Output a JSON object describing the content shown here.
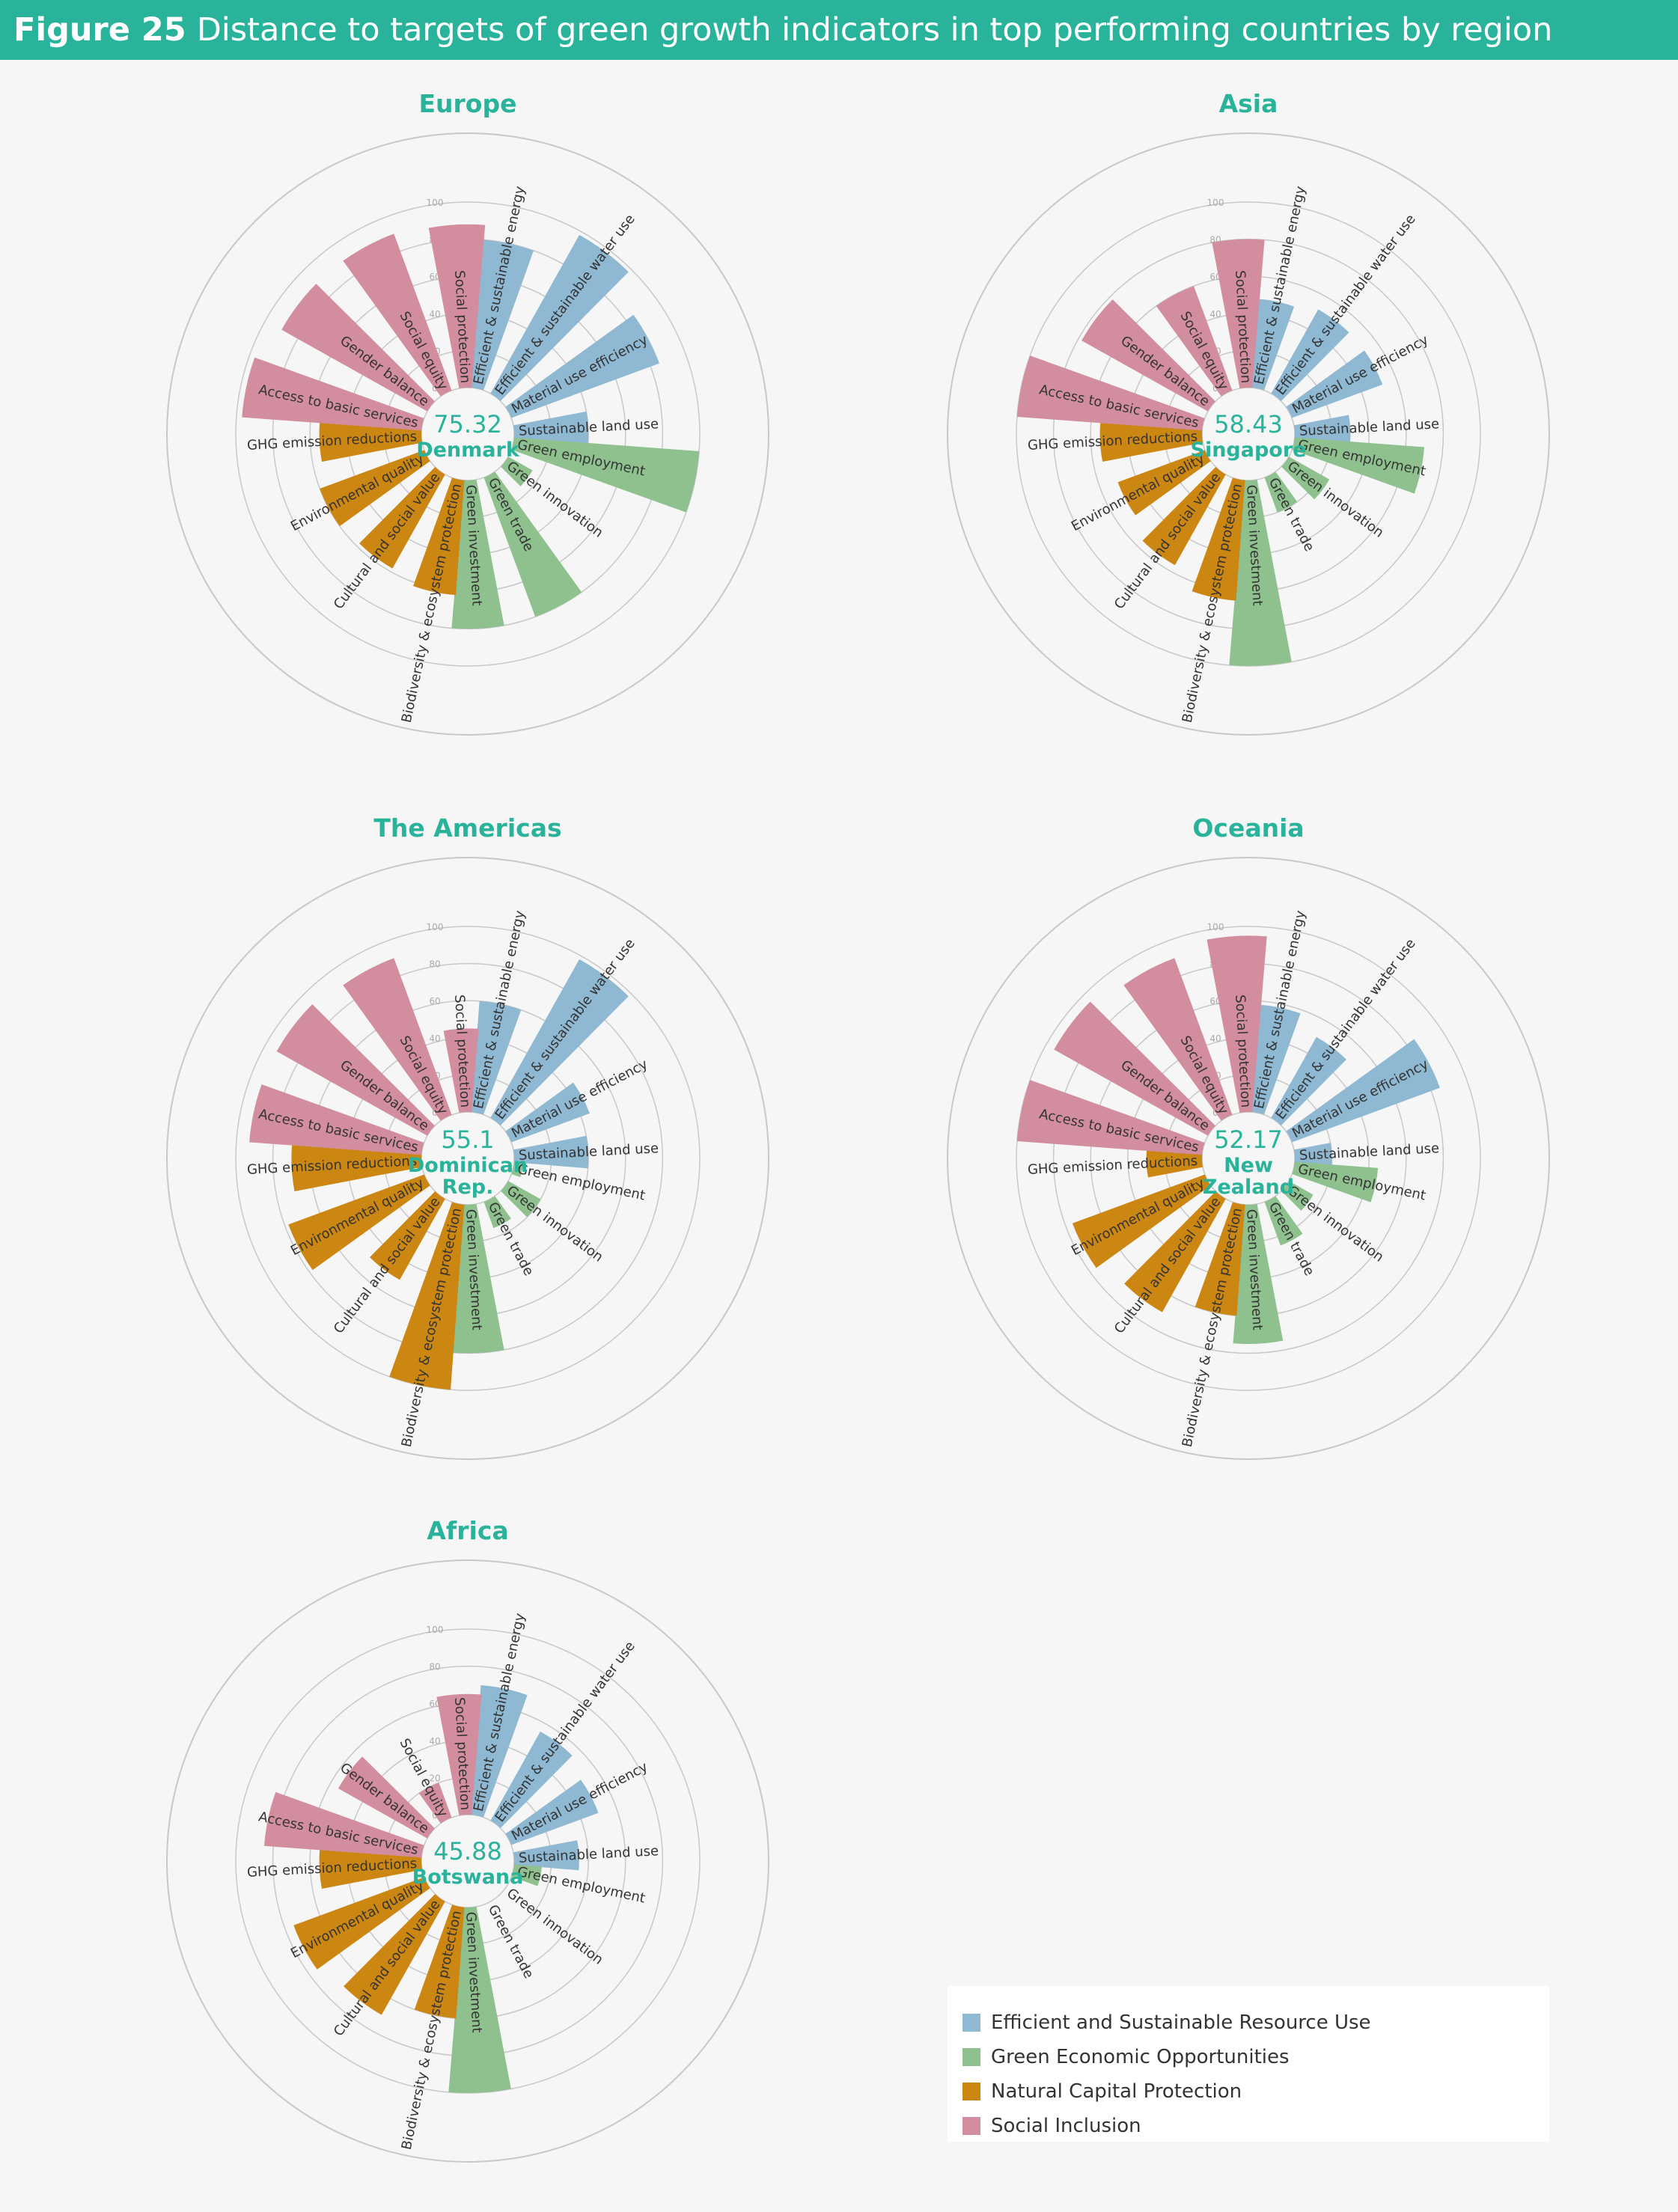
{
  "figure": {
    "number": "Figure 25",
    "title": "Distance to targets of green growth indicators in top performing countries by region"
  },
  "colors": {
    "header": "#2ab39b",
    "accent_text": "#2ab39b",
    "Efficient and Sustainable Resource Use": "#8fb8d2",
    "Green Economic Opportunities": "#8fc18f",
    "Natural Capital Protection": "#cc8612",
    "Social Inclusion": "#d28e9e"
  },
  "legend": {
    "items": [
      "Efficient and Sustainable Resource Use",
      "Green Economic Opportunities",
      "Natural Capital Protection",
      "Social Inclusion"
    ]
  },
  "chart_data": {
    "type": "radial-bar",
    "radial_axis": {
      "range": [
        0,
        100
      ],
      "ticks": [
        0,
        20,
        40,
        60,
        80,
        100
      ]
    },
    "indicators": [
      {
        "label": "Efficient & sustainable energy",
        "group": "Efficient and Sustainable Resource Use"
      },
      {
        "label": "Efficient & sustainable water use",
        "group": "Efficient and Sustainable Resource Use"
      },
      {
        "label": "Material use efficiency",
        "group": "Efficient and Sustainable Resource Use"
      },
      {
        "label": "Sustainable land use",
        "group": "Efficient and Sustainable Resource Use"
      },
      {
        "label": "Green employment",
        "group": "Green Economic Opportunities"
      },
      {
        "label": "Green innovation",
        "group": "Green Economic Opportunities"
      },
      {
        "label": "Green trade",
        "group": "Green Economic Opportunities"
      },
      {
        "label": "Green investment",
        "group": "Green Economic Opportunities"
      },
      {
        "label": "Biodiversity & ecosystem protection",
        "group": "Natural Capital Protection"
      },
      {
        "label": "Cultural and social value",
        "group": "Natural Capital Protection"
      },
      {
        "label": "Environmental quality",
        "group": "Natural Capital Protection"
      },
      {
        "label": "GHG emission reductions",
        "group": "Natural Capital Protection"
      },
      {
        "label": "Access to basic services",
        "group": "Social Inclusion"
      },
      {
        "label": "Gender balance",
        "group": "Social Inclusion"
      },
      {
        "label": "Social equity",
        "group": "Social Inclusion"
      },
      {
        "label": "Social protection",
        "group": "Social Inclusion"
      }
    ],
    "panels": [
      {
        "region": "Europe",
        "country": [
          "Denmark"
        ],
        "score": "75.32",
        "values": [
          80,
          98,
          85,
          40,
          100,
          15,
          80,
          80,
          62,
          58,
          60,
          55,
          97,
          90,
          90,
          88
        ]
      },
      {
        "region": "Asia",
        "country": [
          "Singapore"
        ],
        "score": "58.43",
        "values": [
          48,
          52,
          52,
          30,
          70,
          25,
          20,
          100,
          65,
          56,
          50,
          55,
          100,
          78,
          60,
          80
        ]
      },
      {
        "region": "The Americas",
        "country": [
          "Dominican",
          "Rep."
        ],
        "score": "55.1",
        "values": [
          60,
          98,
          45,
          40,
          5,
          20,
          15,
          80,
          100,
          50,
          78,
          70,
          93,
          93,
          90,
          45
        ]
      },
      {
        "region": "Oceania",
        "country": [
          "New",
          "Zealand"
        ],
        "score": "52.17",
        "values": [
          58,
          50,
          85,
          20,
          45,
          15,
          25,
          75,
          60,
          70,
          76,
          30,
          100,
          95,
          90,
          95
        ]
      },
      {
        "region": "Africa",
        "country": [
          "Botswana"
        ],
        "score": "45.88",
        "values": [
          70,
          55,
          50,
          35,
          15,
          0,
          0,
          100,
          60,
          70,
          75,
          55,
          85,
          55,
          20,
          65
        ]
      }
    ]
  }
}
